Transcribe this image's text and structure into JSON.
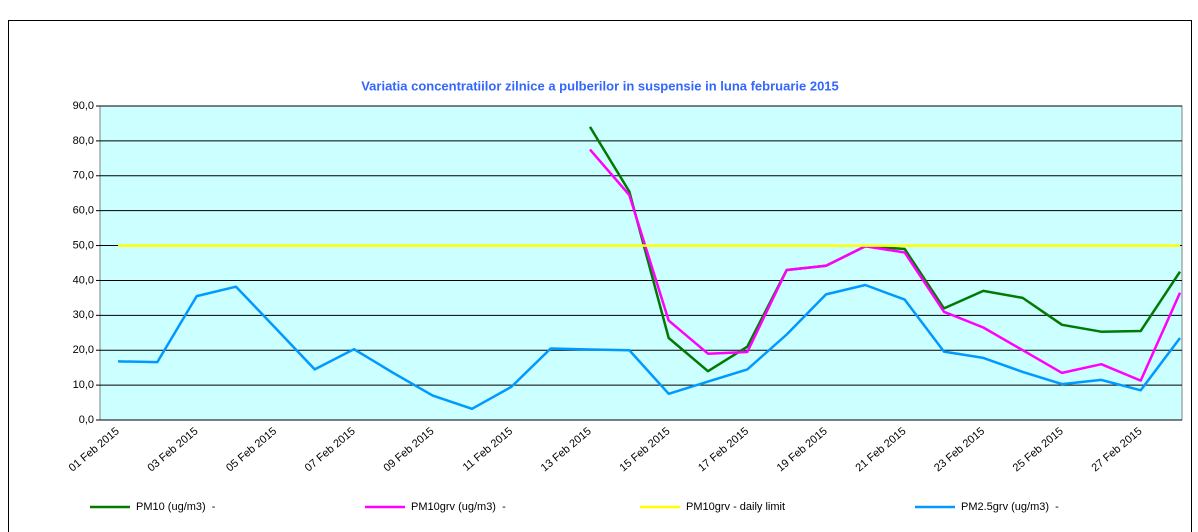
{
  "chart_data": {
    "type": "line",
    "title": "Variatia concentratiilor zilnice a pulberilor in suspensie in luna februarie 2015",
    "categories": [
      "01 Feb 2015",
      null,
      "03 Feb 2015",
      null,
      "05 Feb 2015",
      null,
      "07 Feb 2015",
      null,
      "09 Feb 2015",
      null,
      "11 Feb 2015",
      null,
      "13 Feb 2015",
      null,
      "15 Feb 2015",
      null,
      "17 Feb 2015",
      null,
      "19 Feb 2015",
      null,
      "21 Feb 2015",
      null,
      "23 Feb 2015",
      null,
      "25 Feb 2015",
      null,
      "27 Feb 2015",
      null
    ],
    "series": [
      {
        "name": "PM10 (ug/m3)  -",
        "color": "#007a00",
        "values": [
          null,
          null,
          null,
          null,
          null,
          null,
          null,
          null,
          null,
          null,
          null,
          null,
          84,
          65.5,
          23.5,
          14,
          21,
          43,
          44.2,
          49.8,
          49,
          32,
          37,
          35,
          27.3,
          25.3,
          25.5,
          42.5
        ]
      },
      {
        "name": "PM10grv (ug/m3)  -",
        "color": "#ff00ff",
        "values": [
          null,
          null,
          null,
          null,
          null,
          null,
          null,
          null,
          null,
          null,
          null,
          null,
          77.5,
          64.5,
          28.5,
          19,
          19.5,
          43,
          44.2,
          49.8,
          48,
          31,
          26.5,
          20,
          13.5,
          16,
          11.3,
          36.5
        ]
      },
      {
        "name": "PM10grv - daily limit",
        "color": "#ffff00",
        "values": [
          50,
          50,
          50,
          50,
          50,
          50,
          50,
          50,
          50,
          50,
          50,
          50,
          50,
          50,
          50,
          50,
          50,
          50,
          50,
          50,
          50,
          50,
          50,
          50,
          50,
          50,
          50,
          50
        ]
      },
      {
        "name": "PM2.5grv (ug/m3)  -",
        "color": "#0099ff",
        "values": [
          16.8,
          16.6,
          35.5,
          38.2,
          26.4,
          14.5,
          20.3,
          13.5,
          7,
          3.2,
          9.5,
          20.5,
          20.2,
          20,
          7.5,
          11,
          14.5,
          24.5,
          36,
          38.7,
          34.5,
          19.6,
          17.8,
          13.8,
          10.3,
          11.5,
          8.5,
          23.5
        ]
      }
    ],
    "ylim": [
      0,
      90
    ],
    "yticks": [
      {
        "value": 0,
        "label": "0,0"
      },
      {
        "value": 10,
        "label": "10,0"
      },
      {
        "value": 20,
        "label": "20,0"
      },
      {
        "value": 30,
        "label": "30,0"
      },
      {
        "value": 40,
        "label": "40,0"
      },
      {
        "value": 50,
        "label": "50,0"
      },
      {
        "value": 60,
        "label": "60,0"
      },
      {
        "value": 70,
        "label": "70,0"
      },
      {
        "value": 80,
        "label": "80,0"
      },
      {
        "value": 90,
        "label": "90,0"
      }
    ],
    "grid": true,
    "legend": "bottom"
  }
}
